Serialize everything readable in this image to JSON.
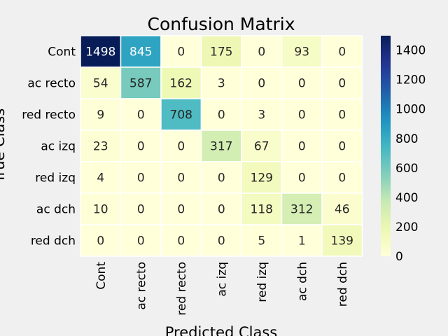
{
  "chart_data": {
    "type": "heatmap",
    "title": "Confusion Matrix",
    "xlabel": "Predicted Class",
    "ylabel": "True Class",
    "categories": [
      "Cont",
      "ac recto",
      "red recto",
      "ac izq",
      "red izq",
      "ac dch",
      "red dch"
    ],
    "row_labels": [
      "Cont",
      "ac recto",
      "red recto",
      "ac izq",
      "red izq",
      "ac dch",
      "red dch"
    ],
    "values": [
      [
        1498,
        845,
        0,
        175,
        0,
        93,
        0
      ],
      [
        54,
        587,
        162,
        3,
        0,
        0,
        0
      ],
      [
        9,
        0,
        708,
        0,
        3,
        0,
        0
      ],
      [
        23,
        0,
        0,
        317,
        67,
        0,
        0
      ],
      [
        4,
        0,
        0,
        0,
        129,
        0,
        0
      ],
      [
        10,
        0,
        0,
        0,
        118,
        312,
        46
      ],
      [
        0,
        0,
        0,
        0,
        5,
        1,
        139
      ]
    ],
    "vmin": 0,
    "vmax": 1498,
    "colormap": "YlGnBu",
    "colorbar_ticks": [
      0,
      200,
      400,
      600,
      800,
      1000,
      1200,
      1400
    ],
    "colorbar_tick_labels": [
      "0",
      "200",
      "400",
      "600",
      "800",
      "1000",
      "1200",
      "1400"
    ]
  }
}
